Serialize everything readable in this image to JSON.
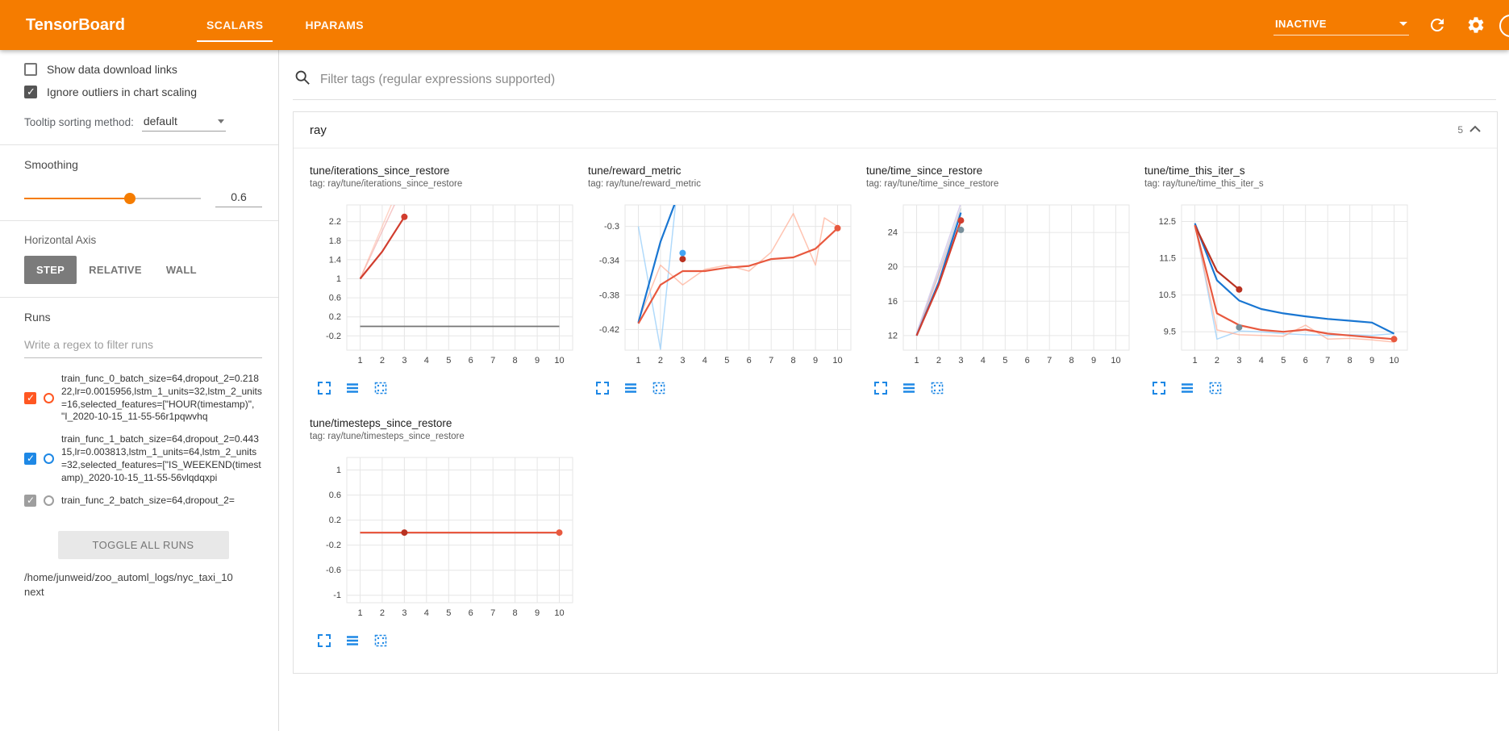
{
  "header": {
    "logo": "TensorBoard",
    "tabs": [
      {
        "label": "SCALARS",
        "active": true
      },
      {
        "label": "HPARAMS",
        "active": false
      }
    ],
    "status_dropdown": "INACTIVE",
    "header_bg": "#f57c00"
  },
  "sidebar": {
    "checkboxes": [
      {
        "label": "Show data download links",
        "checked": false
      },
      {
        "label": "Ignore outliers in chart scaling",
        "checked": true
      }
    ],
    "tooltip_sorting": {
      "label": "Tooltip sorting method:",
      "value": "default"
    },
    "smoothing": {
      "label": "Smoothing",
      "value": "0.6",
      "percent": 60,
      "accent": "#f57c00"
    },
    "horizontal_axis": {
      "label": "Horizontal Axis",
      "options": [
        {
          "label": "STEP",
          "active": true
        },
        {
          "label": "RELATIVE",
          "active": false
        },
        {
          "label": "WALL",
          "active": false
        }
      ]
    },
    "runs": {
      "label": "Runs",
      "filter_placeholder": "Write a regex to filter runs",
      "items": [
        {
          "name": "train_func_0_batch_size=64,dropout_2=0.21822,lr=0.0015956,lstm_1_units=32,lstm_2_units=16,selected_features=[\"HOUR(timestamp)\", \"I_2020-10-15_11-55-56r1pqwvhq",
          "checked": true,
          "color": "#ff5722"
        },
        {
          "name": "train_func_1_batch_size=64,dropout_2=0.44315,lr=0.003813,lstm_1_units=64,lstm_2_units=32,selected_features=[\"IS_WEEKEND(timestamp)_2020-10-15_11-55-56vlqdqxpi",
          "checked": true,
          "color": "#1e88e5"
        },
        {
          "name": "train_func_2_batch_size=64,dropout_2=",
          "checked": true,
          "color": "#9e9e9e"
        }
      ],
      "toggle_all_label": "TOGGLE ALL RUNS",
      "log_path": "/home/junweid/zoo_automl_logs/nyc_taxi_10next"
    }
  },
  "main": {
    "filter_placeholder": "Filter tags (regular expressions supported)",
    "section": {
      "name": "ray",
      "count": "5"
    }
  },
  "charts": [
    {
      "title": "tune/iterations_since_restore",
      "tag": "tag: ray/tune/iterations_since_restore",
      "chart_data": {
        "type": "line",
        "xlim": [
          0.4,
          10.6
        ],
        "ylim": [
          -0.5,
          2.55
        ],
        "xticks": [
          "1",
          "2",
          "3",
          "4",
          "5",
          "6",
          "7",
          "8",
          "9",
          "10"
        ],
        "yticks": [
          "-0.2",
          "0.2",
          "0.6",
          "1",
          "1.4",
          "1.8",
          "2.2"
        ],
        "series": [
          {
            "name": "run0-raw",
            "color": "#ef9a9a",
            "width": 1.5,
            "opacity": 0.55,
            "points": [
              [
                1,
                1
              ],
              [
                2,
                2
              ],
              [
                3,
                3
              ]
            ]
          },
          {
            "name": "run1-raw",
            "color": "#ffab91",
            "width": 1.5,
            "opacity": 0.5,
            "points": [
              [
                1,
                1
              ],
              [
                2,
                2.1
              ],
              [
                3,
                3.2
              ]
            ]
          },
          {
            "name": "zero-baseline",
            "color": "#757575",
            "width": 1.8,
            "points": [
              [
                1,
                0
              ],
              [
                10,
                0
              ]
            ]
          },
          {
            "name": "run0-smoothed",
            "color": "#d13d2e",
            "width": 2.2,
            "points": [
              [
                1,
                1
              ],
              [
                2,
                1.57
              ],
              [
                3,
                2.3
              ]
            ],
            "dot": true
          }
        ]
      }
    },
    {
      "title": "tune/reward_metric",
      "tag": "tag: ray/tune/reward_metric",
      "chart_data": {
        "type": "line",
        "xlim": [
          0.4,
          10.6
        ],
        "ylim": [
          -0.444,
          -0.275
        ],
        "xticks": [
          "1",
          "2",
          "3",
          "4",
          "5",
          "6",
          "7",
          "8",
          "9",
          "10"
        ],
        "yticks": [
          "-0.42",
          "-0.38",
          "-0.34",
          "-0.3"
        ],
        "series": [
          {
            "name": "run1-raw",
            "color": "#90caf9",
            "width": 1.5,
            "opacity": 0.7,
            "points": [
              [
                1,
                -0.3
              ],
              [
                2,
                -0.443
              ],
              [
                2.7,
                -0.27
              ]
            ]
          },
          {
            "name": "run0-raw",
            "color": "#ffab91",
            "width": 1.5,
            "opacity": 0.7,
            "points": [
              [
                1,
                -0.41
              ],
              [
                2,
                -0.345
              ],
              [
                3,
                -0.368
              ],
              [
                4,
                -0.35
              ],
              [
                5,
                -0.345
              ],
              [
                6,
                -0.352
              ],
              [
                7,
                -0.33
              ],
              [
                8,
                -0.285
              ],
              [
                9,
                -0.345
              ],
              [
                9.4,
                -0.29
              ],
              [
                10,
                -0.3
              ]
            ]
          },
          {
            "name": "run1-smoothed",
            "color": "#1976d2",
            "width": 2.2,
            "points": [
              [
                1,
                -0.412
              ],
              [
                2,
                -0.318
              ],
              [
                2.7,
                -0.27
              ]
            ]
          },
          {
            "name": "run0-smoothed",
            "color": "#e8593f",
            "width": 2.2,
            "points": [
              [
                1,
                -0.413
              ],
              [
                2,
                -0.368
              ],
              [
                3,
                -0.352
              ],
              [
                4,
                -0.352
              ],
              [
                5,
                -0.348
              ],
              [
                6,
                -0.346
              ],
              [
                7,
                -0.338
              ],
              [
                8,
                -0.336
              ],
              [
                9,
                -0.326
              ],
              [
                10,
                -0.302
              ]
            ],
            "dot": true
          },
          {
            "name": "run0-step3-marker",
            "color": "#b93221",
            "points": [
              [
                3,
                -0.338
              ]
            ],
            "dot": true
          },
          {
            "name": "run1-step3-marker",
            "color": "#42a5f5",
            "points": [
              [
                3,
                -0.331
              ]
            ],
            "dot": true
          }
        ]
      }
    },
    {
      "title": "tune/time_since_restore",
      "tag": "tag: ray/tune/time_since_restore",
      "chart_data": {
        "type": "line",
        "xlim": [
          0.4,
          10.6
        ],
        "ylim": [
          10.3,
          27.2
        ],
        "xticks": [
          "1",
          "2",
          "3",
          "4",
          "5",
          "6",
          "7",
          "8",
          "9",
          "10"
        ],
        "yticks": [
          "12",
          "16",
          "20",
          "24"
        ],
        "series": [
          {
            "name": "raw-a",
            "color": "#b0bec5",
            "width": 1.5,
            "opacity": 0.6,
            "points": [
              [
                1,
                12.2
              ],
              [
                2,
                19.3
              ],
              [
                3,
                26.8
              ]
            ]
          },
          {
            "name": "raw-b",
            "color": "#ef9a9a",
            "width": 1.5,
            "opacity": 0.5,
            "points": [
              [
                1,
                12.1
              ],
              [
                2,
                19
              ],
              [
                3,
                26.2
              ]
            ]
          },
          {
            "name": "raw-c",
            "color": "#d1c4e9",
            "width": 1.5,
            "opacity": 0.8,
            "points": [
              [
                1,
                12.3
              ],
              [
                2,
                19.8
              ],
              [
                3,
                27.4
              ]
            ]
          },
          {
            "name": "run1-smoothed",
            "color": "#1976d2",
            "width": 2.2,
            "points": [
              [
                1,
                12
              ],
              [
                2,
                18.2
              ],
              [
                3,
                26.3
              ]
            ]
          },
          {
            "name": "run0-smoothed",
            "color": "#d13d2e",
            "width": 2.2,
            "points": [
              [
                1,
                12
              ],
              [
                2,
                17.9
              ],
              [
                3,
                25.4
              ]
            ],
            "dot": true
          },
          {
            "name": "step3-marker",
            "color": "#78909c",
            "points": [
              [
                3,
                24.3
              ]
            ],
            "dot": true
          }
        ]
      }
    },
    {
      "title": "tune/time_this_iter_s",
      "tag": "tag: ray/tune/time_this_iter_s",
      "chart_data": {
        "type": "line",
        "xlim": [
          0.4,
          10.6
        ],
        "ylim": [
          9.0,
          12.95
        ],
        "xticks": [
          "1",
          "2",
          "3",
          "4",
          "5",
          "6",
          "7",
          "8",
          "9",
          "10"
        ],
        "yticks": [
          "9.5",
          "10.5",
          "11.5",
          "12.5"
        ],
        "series": [
          {
            "name": "run1-raw",
            "color": "#90caf9",
            "width": 1.5,
            "opacity": 0.7,
            "points": [
              [
                1,
                12.45
              ],
              [
                2,
                9.3
              ],
              [
                3,
                9.52
              ],
              [
                4,
                9.5
              ],
              [
                5,
                9.45
              ],
              [
                6,
                9.42
              ],
              [
                7,
                9.4
              ],
              [
                8,
                9.42
              ],
              [
                9,
                9.4
              ],
              [
                10,
                9.45
              ]
            ]
          },
          {
            "name": "run0-raw",
            "color": "#ffab91",
            "width": 1.5,
            "opacity": 0.7,
            "points": [
              [
                1,
                12.4
              ],
              [
                2,
                9.55
              ],
              [
                3,
                9.42
              ],
              [
                4,
                9.4
              ],
              [
                5,
                9.38
              ],
              [
                6,
                9.68
              ],
              [
                7,
                9.3
              ],
              [
                8,
                9.32
              ],
              [
                9,
                9.28
              ],
              [
                10,
                9.22
              ]
            ]
          },
          {
            "name": "run1-smoothed",
            "color": "#1976d2",
            "width": 2.2,
            "points": [
              [
                1,
                12.45
              ],
              [
                2,
                10.9
              ],
              [
                3,
                10.35
              ],
              [
                4,
                10.12
              ],
              [
                5,
                10
              ],
              [
                6,
                9.92
              ],
              [
                7,
                9.85
              ],
              [
                8,
                9.8
              ],
              [
                9,
                9.75
              ],
              [
                10,
                9.45
              ]
            ]
          },
          {
            "name": "run0a-smoothed",
            "color": "#b93221",
            "width": 2.2,
            "points": [
              [
                1,
                12.4
              ],
              [
                2,
                11.15
              ],
              [
                3,
                10.65
              ]
            ],
            "dot": true
          },
          {
            "name": "run0-smoothed",
            "color": "#e8593f",
            "width": 2.2,
            "points": [
              [
                1,
                12.4
              ],
              [
                2,
                10
              ],
              [
                3,
                9.68
              ],
              [
                4,
                9.55
              ],
              [
                5,
                9.5
              ],
              [
                6,
                9.56
              ],
              [
                7,
                9.45
              ],
              [
                8,
                9.4
              ],
              [
                9,
                9.35
              ],
              [
                10,
                9.3
              ]
            ],
            "dot": true
          },
          {
            "name": "step3-marker",
            "color": "#78909c",
            "points": [
              [
                3,
                9.62
              ]
            ],
            "dot": true
          }
        ]
      }
    },
    {
      "title": "tune/timesteps_since_restore",
      "tag": "tag: ray/tune/timesteps_since_restore",
      "chart_data": {
        "type": "line",
        "xlim": [
          0.4,
          10.6
        ],
        "ylim": [
          -1.12,
          1.2
        ],
        "xticks": [
          "1",
          "2",
          "3",
          "4",
          "5",
          "6",
          "7",
          "8",
          "9",
          "10"
        ],
        "yticks": [
          "-1",
          "-0.6",
          "-0.2",
          "0.2",
          "0.6",
          "1"
        ],
        "series": [
          {
            "name": "run1-smoothed",
            "color": "#1976d2",
            "width": 2,
            "points": [
              [
                1,
                0
              ],
              [
                10,
                0
              ]
            ]
          },
          {
            "name": "run0-smoothed",
            "color": "#e8593f",
            "width": 2.2,
            "points": [
              [
                1,
                0
              ],
              [
                10,
                0
              ]
            ],
            "dot": true
          },
          {
            "name": "step3-marker",
            "color": "#b93221",
            "points": [
              [
                3,
                0
              ]
            ],
            "dot": true
          }
        ]
      }
    }
  ]
}
